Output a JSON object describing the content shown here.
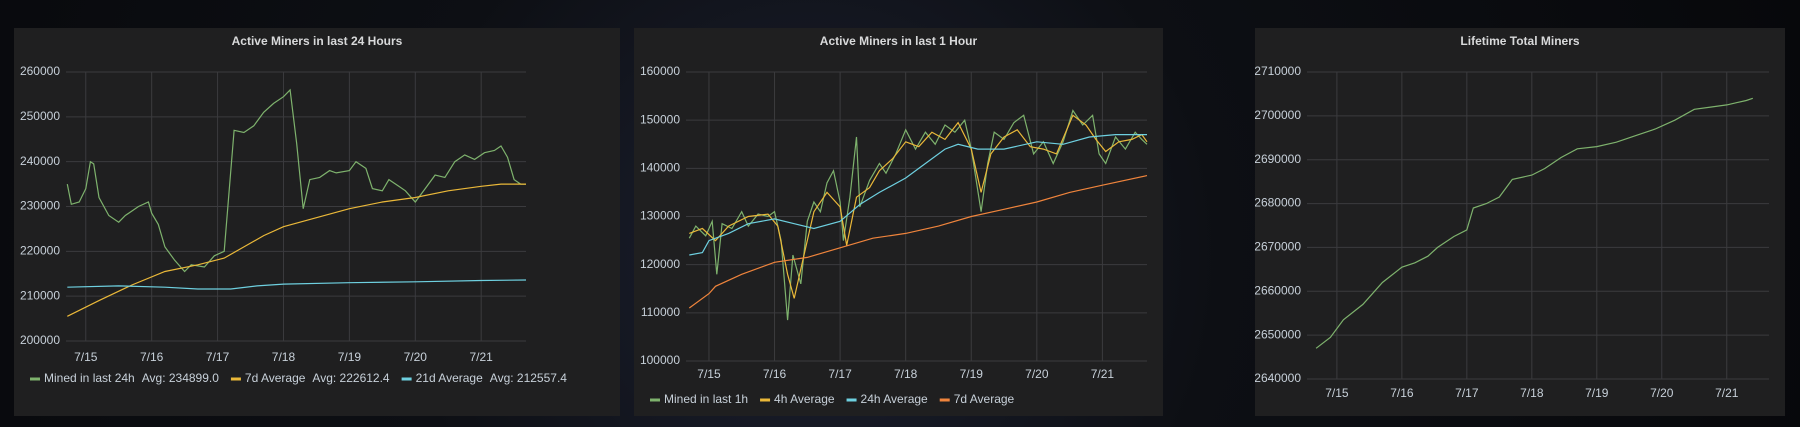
{
  "chart_data": [
    {
      "type": "line",
      "title": "Active Miners in last 24 Hours",
      "xlim": [
        14.7,
        21.68
      ],
      "xticks": [
        {
          "value": 15,
          "label": "7/15"
        },
        {
          "value": 16,
          "label": "7/16"
        },
        {
          "value": 17,
          "label": "7/17"
        },
        {
          "value": 18,
          "label": "7/18"
        },
        {
          "value": 19,
          "label": "7/19"
        },
        {
          "value": 20,
          "label": "7/20"
        },
        {
          "value": 21,
          "label": "7/21"
        }
      ],
      "ylim": [
        200000,
        260000
      ],
      "yticks": [
        200000,
        210000,
        220000,
        230000,
        240000,
        250000,
        260000
      ],
      "grid": true,
      "series": [
        {
          "name": "Mined in last 24h",
          "legend_avg": "Avg: 234899.0",
          "color": "#7eb26d",
          "x": [
            14.72,
            14.78,
            14.9,
            15.0,
            15.07,
            15.12,
            15.2,
            15.35,
            15.5,
            15.6,
            15.8,
            15.95,
            16.0,
            16.1,
            16.2,
            16.35,
            16.5,
            16.6,
            16.8,
            16.95,
            17.1,
            17.25,
            17.4,
            17.55,
            17.7,
            17.85,
            18.0,
            18.1,
            18.2,
            18.3,
            18.4,
            18.55,
            18.7,
            18.8,
            19.0,
            19.1,
            19.25,
            19.35,
            19.5,
            19.6,
            19.75,
            19.85,
            20.0,
            20.15,
            20.3,
            20.45,
            20.6,
            20.75,
            20.9,
            21.05,
            21.2,
            21.3,
            21.4,
            21.5,
            21.6,
            21.68
          ],
          "values": [
            235000,
            230500,
            231000,
            234000,
            240000,
            239500,
            232000,
            228000,
            226500,
            228000,
            230000,
            231000,
            228500,
            226000,
            221000,
            218000,
            215500,
            217000,
            216500,
            219000,
            220000,
            247000,
            246500,
            248000,
            251000,
            253000,
            254500,
            256000,
            244000,
            229500,
            236000,
            236500,
            238000,
            237500,
            238000,
            240000,
            238500,
            234000,
            233500,
            236000,
            234500,
            233500,
            231000,
            234000,
            237000,
            236500,
            240000,
            241500,
            240500,
            242000,
            242500,
            243500,
            241000,
            236000,
            235000,
            235000
          ]
        },
        {
          "name": "7d Average",
          "legend_avg": "Avg: 222612.4",
          "color": "#eab839",
          "x": [
            14.72,
            15.2,
            15.7,
            16.2,
            16.7,
            17.1,
            17.4,
            17.7,
            18.0,
            18.5,
            19.0,
            19.5,
            20.0,
            20.5,
            21.0,
            21.3,
            21.68
          ],
          "values": [
            205500,
            209000,
            212500,
            215500,
            217000,
            218500,
            221000,
            223500,
            225500,
            227500,
            229500,
            231000,
            232000,
            233500,
            234500,
            235000,
            235000
          ]
        },
        {
          "name": "21d Average",
          "legend_avg": "Avg: 212557.4",
          "color": "#6ed0e0",
          "x": [
            14.72,
            15.5,
            16.2,
            16.7,
            17.2,
            17.6,
            18.0,
            19.0,
            20.0,
            21.0,
            21.68
          ],
          "values": [
            212000,
            212300,
            212000,
            211600,
            211600,
            212300,
            212700,
            213000,
            213200,
            213500,
            213600
          ]
        }
      ]
    },
    {
      "type": "line",
      "title": "Active Miners in last 1 Hour",
      "xlim": [
        14.65,
        21.68
      ],
      "xticks": [
        {
          "value": 15,
          "label": "7/15"
        },
        {
          "value": 16,
          "label": "7/16"
        },
        {
          "value": 17,
          "label": "7/17"
        },
        {
          "value": 18,
          "label": "7/18"
        },
        {
          "value": 19,
          "label": "7/19"
        },
        {
          "value": 20,
          "label": "7/20"
        },
        {
          "value": 21,
          "label": "7/21"
        }
      ],
      "ylim": [
        100000,
        160000
      ],
      "yticks": [
        100000,
        110000,
        120000,
        130000,
        140000,
        150000,
        160000
      ],
      "grid": true,
      "series": [
        {
          "name": "Mined in last 1h",
          "color": "#7eb26d",
          "x": [
            14.7,
            14.8,
            14.95,
            15.05,
            15.12,
            15.2,
            15.35,
            15.5,
            15.6,
            15.75,
            15.9,
            16.0,
            16.1,
            16.2,
            16.28,
            16.4,
            16.5,
            16.6,
            16.7,
            16.8,
            16.9,
            17.0,
            17.05,
            17.15,
            17.25,
            17.3,
            17.45,
            17.6,
            17.7,
            17.85,
            18.0,
            18.15,
            18.3,
            18.45,
            18.6,
            18.75,
            18.9,
            19.0,
            19.15,
            19.25,
            19.35,
            19.5,
            19.65,
            19.8,
            19.95,
            20.1,
            20.25,
            20.4,
            20.55,
            20.7,
            20.85,
            20.95,
            21.05,
            21.2,
            21.35,
            21.5,
            21.6,
            21.68
          ],
          "values": [
            125500,
            128000,
            126000,
            129000,
            118000,
            128500,
            127500,
            131000,
            128000,
            130500,
            130000,
            131000,
            125000,
            108500,
            122000,
            116000,
            129000,
            133000,
            131000,
            137000,
            139500,
            133000,
            125000,
            134000,
            146500,
            132000,
            137500,
            141000,
            139000,
            143000,
            148000,
            144000,
            147500,
            145000,
            149000,
            147500,
            150000,
            144000,
            131000,
            141000,
            147500,
            146000,
            149500,
            151000,
            143000,
            145500,
            141000,
            145500,
            152000,
            149000,
            151000,
            143000,
            141000,
            146500,
            144000,
            147500,
            146000,
            145000
          ]
        },
        {
          "name": "4h Average",
          "color": "#eab839",
          "x": [
            14.7,
            14.9,
            15.1,
            15.3,
            15.6,
            15.9,
            16.05,
            16.2,
            16.3,
            16.45,
            16.6,
            16.8,
            17.0,
            17.1,
            17.25,
            17.45,
            17.6,
            17.8,
            18.0,
            18.2,
            18.4,
            18.6,
            18.8,
            19.0,
            19.15,
            19.3,
            19.5,
            19.7,
            19.9,
            20.1,
            20.3,
            20.55,
            20.75,
            20.9,
            21.05,
            21.25,
            21.45,
            21.6,
            21.68
          ],
          "values": [
            126500,
            127500,
            125000,
            128000,
            130000,
            130500,
            128000,
            118000,
            113000,
            122000,
            131000,
            135000,
            132000,
            124000,
            134000,
            136000,
            139500,
            142000,
            145500,
            144500,
            147500,
            146000,
            149500,
            144000,
            135000,
            143000,
            146500,
            148000,
            144500,
            144000,
            143000,
            151000,
            149000,
            146000,
            143500,
            145500,
            146000,
            147000,
            145500
          ]
        },
        {
          "name": "24h Average",
          "color": "#6ed0e0",
          "x": [
            14.7,
            14.9,
            15.0,
            15.3,
            15.6,
            16.0,
            16.3,
            16.6,
            17.0,
            17.3,
            17.6,
            18.0,
            18.3,
            18.6,
            18.8,
            19.1,
            19.5,
            20.0,
            20.4,
            20.8,
            21.2,
            21.68
          ],
          "values": [
            122000,
            122500,
            125000,
            126500,
            128500,
            129500,
            128500,
            127500,
            129000,
            132500,
            135000,
            138000,
            141000,
            144000,
            145000,
            144000,
            144000,
            145500,
            145000,
            146500,
            147000,
            147000
          ]
        },
        {
          "name": "7d Average",
          "color": "#ef843c",
          "x": [
            14.7,
            15.0,
            15.1,
            15.5,
            16.0,
            16.5,
            17.0,
            17.5,
            18.0,
            18.5,
            19.0,
            19.5,
            20.0,
            20.5,
            21.0,
            21.68
          ],
          "values": [
            111000,
            114000,
            115500,
            118000,
            120500,
            121500,
            123500,
            125500,
            126500,
            128000,
            130000,
            131500,
            133000,
            135000,
            136500,
            138500
          ]
        }
      ]
    },
    {
      "type": "line",
      "title": "Lifetime Total Miners",
      "xlim": [
        14.54,
        21.65
      ],
      "xticks": [
        {
          "value": 15,
          "label": "7/15"
        },
        {
          "value": 16,
          "label": "7/16"
        },
        {
          "value": 17,
          "label": "7/17"
        },
        {
          "value": 18,
          "label": "7/18"
        },
        {
          "value": 19,
          "label": "7/19"
        },
        {
          "value": 20,
          "label": "7/20"
        },
        {
          "value": 21,
          "label": "7/21"
        }
      ],
      "ylim": [
        2640000,
        2710000
      ],
      "yticks": [
        2640000,
        2650000,
        2660000,
        2670000,
        2680000,
        2690000,
        2700000,
        2710000
      ],
      "grid": true,
      "series": [
        {
          "color": "#7eb26d",
          "x": [
            14.68,
            14.9,
            15.1,
            15.4,
            15.7,
            16.0,
            16.2,
            16.4,
            16.55,
            16.8,
            17.0,
            17.1,
            17.3,
            17.5,
            17.7,
            18.0,
            18.2,
            18.45,
            18.7,
            19.0,
            19.3,
            19.6,
            19.9,
            20.2,
            20.5,
            20.75,
            21.0,
            21.15,
            21.3,
            21.4
          ],
          "values": [
            2647000,
            2649500,
            2653500,
            2657000,
            2662000,
            2665500,
            2666500,
            2668000,
            2670000,
            2672500,
            2674000,
            2679000,
            2680000,
            2681500,
            2685500,
            2686500,
            2688000,
            2690500,
            2692500,
            2693000,
            2694000,
            2695500,
            2697000,
            2699000,
            2701500,
            2702000,
            2702500,
            2703000,
            2703500,
            2704000
          ]
        }
      ]
    }
  ]
}
